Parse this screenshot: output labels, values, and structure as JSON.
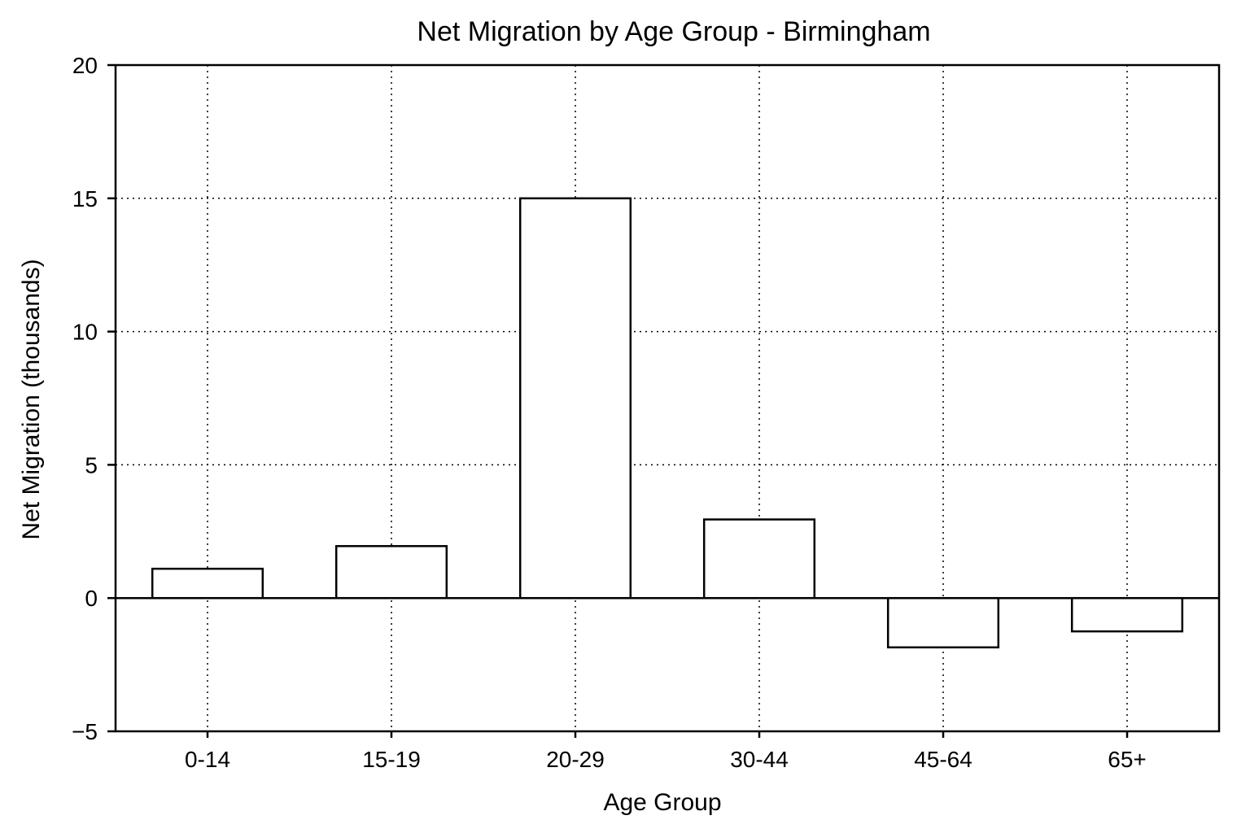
{
  "chart_data": {
    "type": "bar",
    "title": "Net Migration by Age Group - Birmingham",
    "xlabel": "Age Group",
    "ylabel": "Net Migration (thousands)",
    "categories": [
      "0-14",
      "15-19",
      "20-29",
      "30-44",
      "45-64",
      "65+"
    ],
    "values": [
      1.1,
      1.95,
      15.0,
      2.95,
      -1.85,
      -1.25
    ],
    "ylim": [
      -5,
      20
    ],
    "yticks": [
      -5,
      0,
      5,
      10,
      15,
      20
    ],
    "ytick_labels": [
      "−5",
      "0",
      "5",
      "10",
      "15",
      "20"
    ],
    "grid": true,
    "bar_fill": "#ffffff",
    "bar_edge": "#000000"
  }
}
